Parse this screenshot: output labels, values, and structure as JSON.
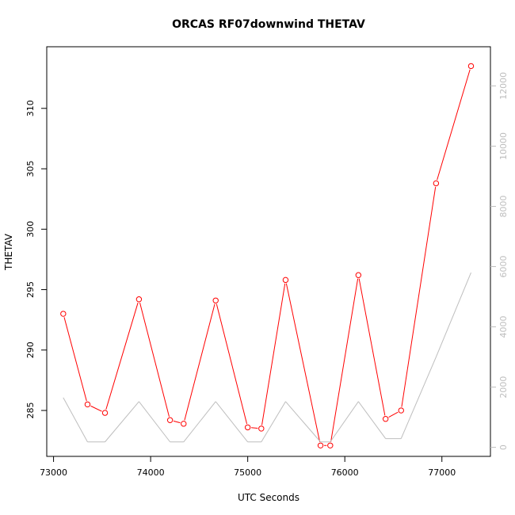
{
  "chart_data": {
    "type": "line",
    "title": "ORCAS RF07downwind THETAV",
    "xlabel": "UTC Seconds",
    "ylabel": "THETAV",
    "xlim": [
      72930,
      77500
    ],
    "ylim": [
      281.2,
      315.1
    ],
    "y2lim": [
      -300,
      13300
    ],
    "x_ticks": [
      73000,
      74000,
      75000,
      76000,
      77000
    ],
    "y_ticks": [
      285,
      290,
      295,
      300,
      305,
      310
    ],
    "y2_ticks": [
      0,
      2000,
      4000,
      6000,
      8000,
      10000,
      12000
    ],
    "grid": false,
    "series": [
      {
        "axis": "left",
        "color": "#ff0000",
        "markers": "open-circle",
        "x": [
          73100,
          73350,
          73530,
          73880,
          74200,
          74340,
          74670,
          75000,
          75140,
          75390,
          75750,
          75850,
          76140,
          76420,
          76580,
          76940,
          77300
        ],
        "y": [
          293.0,
          285.5,
          284.8,
          294.2,
          284.2,
          283.9,
          294.1,
          283.6,
          283.5,
          295.8,
          282.1,
          282.1,
          296.2,
          284.3,
          285.0,
          303.8,
          313.5
        ]
      },
      {
        "axis": "right",
        "color": "#bebebe",
        "markers": "none",
        "x": [
          73100,
          73350,
          73530,
          73880,
          74200,
          74340,
          74670,
          75000,
          75140,
          75390,
          75750,
          75850,
          76140,
          76420,
          76580,
          76940,
          77300
        ],
        "y": [
          1650,
          180,
          180,
          1520,
          180,
          180,
          1520,
          180,
          180,
          1520,
          180,
          180,
          1520,
          290,
          290,
          3000,
          5800
        ]
      }
    ]
  }
}
